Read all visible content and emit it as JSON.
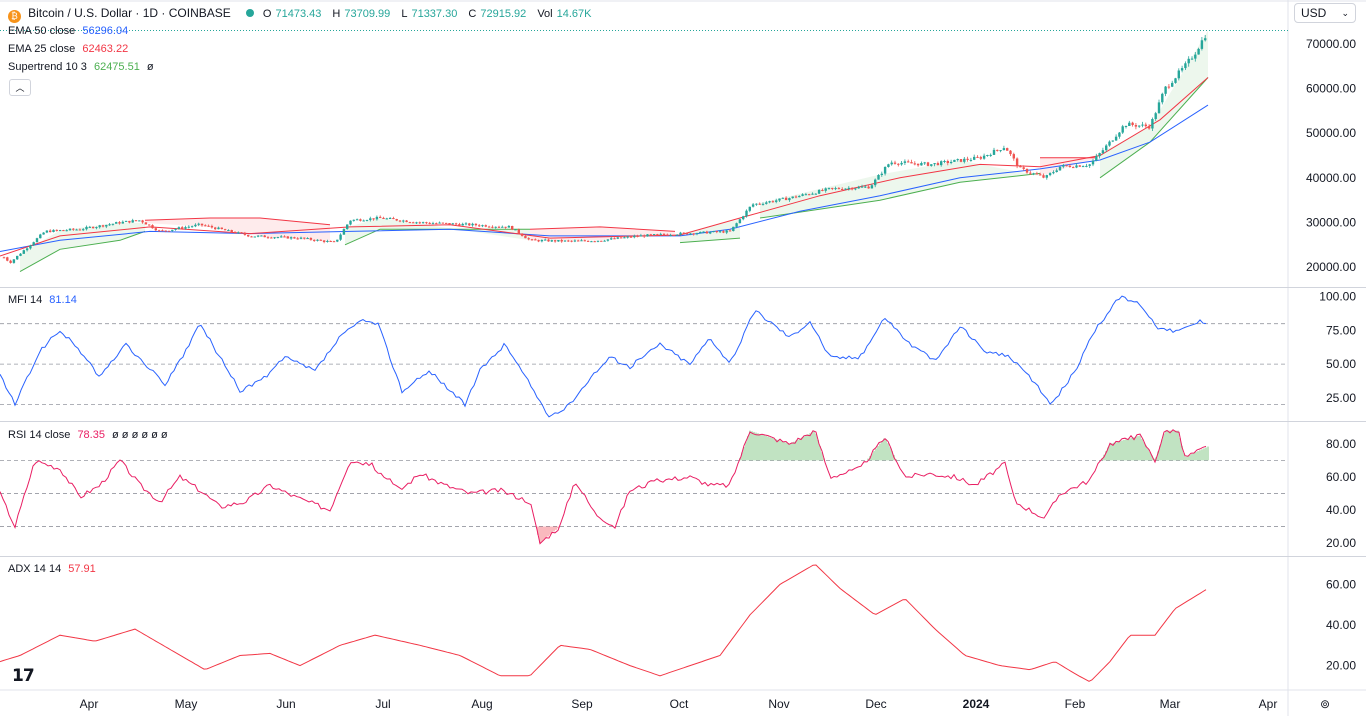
{
  "header": {
    "symbol_title": "Bitcoin / U.S. Dollar · 1D · COINBASE",
    "open_label": "O",
    "open": "71473.43",
    "high_label": "H",
    "high": "73709.99",
    "low_label": "L",
    "low": "71337.30",
    "close_label": "C",
    "close": "72915.92",
    "vol_label": "Vol",
    "vol": "14.67K",
    "currency": "USD"
  },
  "legends": {
    "ema50_name": "EMA 50 close",
    "ema50_value": "56296.04",
    "ema25_name": "EMA 25 close",
    "ema25_value": "62463.22",
    "supertrend_name": "Supertrend 10 3",
    "supertrend_value": "62475.51",
    "mfi_name": "MFI 14",
    "mfi_value": "81.14",
    "rsi_name": "RSI 14 close",
    "rsi_value": "78.35",
    "adx_name": "ADX 14 14",
    "adx_value": "57.91"
  },
  "colors": {
    "up": "#26a69a",
    "down": "#ef5350",
    "ema50": "#2962ff",
    "ema25": "#f23645",
    "supertrend_up": "#4caf50",
    "supertrend_down": "#f23645",
    "mfi": "#2962ff",
    "rsi": "#e91e63",
    "adx": "#f23645",
    "grid": "#e0e3eb"
  },
  "chart_data": [
    {
      "type": "candlestick",
      "title": "Bitcoin / U.S. Dollar · 1D · COINBASE",
      "x": [
        "Apr",
        "May",
        "Jun",
        "Jul",
        "Aug",
        "Sep",
        "Oct",
        "Nov",
        "Dec",
        "2024",
        "Feb",
        "Mar",
        "Apr"
      ],
      "ylim": [
        16000,
        74000
      ],
      "yticks": [
        "20000.00",
        "30000.00",
        "40000.00",
        "50000.00",
        "60000.00",
        "70000.00"
      ],
      "price_path": [
        [
          0,
          23000
        ],
        [
          10,
          21000
        ],
        [
          25,
          24000
        ],
        [
          45,
          28000
        ],
        [
          80,
          28500
        ],
        [
          120,
          30000
        ],
        [
          140,
          30500
        ],
        [
          160,
          28000
        ],
        [
          200,
          29500
        ],
        [
          250,
          27000
        ],
        [
          300,
          26500
        ],
        [
          335,
          25500
        ],
        [
          350,
          30500
        ],
        [
          380,
          31000
        ],
        [
          420,
          30000
        ],
        [
          470,
          29500
        ],
        [
          510,
          29000
        ],
        [
          530,
          26000
        ],
        [
          570,
          25800
        ],
        [
          600,
          26000
        ],
        [
          640,
          27000
        ],
        [
          680,
          27500
        ],
        [
          730,
          28000
        ],
        [
          752,
          34000
        ],
        [
          790,
          35500
        ],
        [
          830,
          37500
        ],
        [
          870,
          38000
        ],
        [
          890,
          43500
        ],
        [
          930,
          43000
        ],
        [
          980,
          44500
        ],
        [
          1005,
          47000
        ],
        [
          1020,
          42000
        ],
        [
          1045,
          40000
        ],
        [
          1060,
          42500
        ],
        [
          1090,
          43000
        ],
        [
          1110,
          48000
        ],
        [
          1125,
          52000
        ],
        [
          1150,
          51500
        ],
        [
          1165,
          60000
        ],
        [
          1185,
          65000
        ],
        [
          1195,
          68000
        ],
        [
          1208,
          73000
        ]
      ],
      "ema50_path": [
        [
          0,
          23500
        ],
        [
          60,
          26000
        ],
        [
          150,
          28000
        ],
        [
          250,
          27500
        ],
        [
          350,
          28000
        ],
        [
          450,
          28500
        ],
        [
          550,
          27000
        ],
        [
          680,
          27000
        ],
        [
          730,
          28500
        ],
        [
          800,
          32500
        ],
        [
          880,
          36000
        ],
        [
          960,
          40000
        ],
        [
          1040,
          42000
        ],
        [
          1100,
          44000
        ],
        [
          1150,
          48000
        ],
        [
          1208,
          56296.04
        ]
      ],
      "ema25_path": [
        [
          0,
          22500
        ],
        [
          60,
          27000
        ],
        [
          150,
          29000
        ],
        [
          250,
          27500
        ],
        [
          350,
          29000
        ],
        [
          450,
          29500
        ],
        [
          550,
          26500
        ],
        [
          680,
          27200
        ],
        [
          740,
          31000
        ],
        [
          820,
          36000
        ],
        [
          900,
          40000
        ],
        [
          980,
          43000
        ],
        [
          1040,
          42500
        ],
        [
          1100,
          45000
        ],
        [
          1160,
          53000
        ],
        [
          1208,
          62463.22
        ]
      ],
      "supertrend_up_segments": [
        [
          [
            20,
            19000
          ],
          [
            60,
            24000
          ],
          [
            120,
            26000
          ],
          [
            145,
            28000
          ]
        ],
        [
          [
            345,
            25000
          ],
          [
            380,
            28500
          ],
          [
            530,
            28500
          ]
        ],
        [
          [
            680,
            25500
          ],
          [
            740,
            26500
          ]
        ],
        [
          [
            760,
            31000
          ],
          [
            880,
            35000
          ],
          [
            960,
            39000
          ],
          [
            1040,
            41000
          ]
        ],
        [
          [
            1100,
            40000
          ],
          [
            1150,
            48000
          ],
          [
            1208,
            62475.51
          ]
        ]
      ],
      "supertrend_down_segments": [
        [
          [
            145,
            30500
          ],
          [
            210,
            31000
          ],
          [
            260,
            31000
          ],
          [
            330,
            29500
          ]
        ],
        [
          [
            530,
            28500
          ],
          [
            600,
            29000
          ],
          [
            675,
            28000
          ]
        ],
        [
          [
            1040,
            44500
          ],
          [
            1095,
            44500
          ]
        ]
      ]
    },
    {
      "type": "line",
      "name": "MFI 14",
      "ylim": [
        10,
        105
      ],
      "yticks": [
        "25.00",
        "50.00",
        "75.00",
        "100.00"
      ],
      "bands": [
        20,
        50,
        80
      ],
      "values": [
        [
          0,
          42
        ],
        [
          15,
          20
        ],
        [
          40,
          60
        ],
        [
          60,
          75
        ],
        [
          80,
          60
        ],
        [
          100,
          40
        ],
        [
          125,
          65
        ],
        [
          145,
          50
        ],
        [
          165,
          35
        ],
        [
          180,
          52
        ],
        [
          200,
          80
        ],
        [
          220,
          55
        ],
        [
          240,
          30
        ],
        [
          265,
          40
        ],
        [
          285,
          55
        ],
        [
          315,
          45
        ],
        [
          340,
          70
        ],
        [
          360,
          82
        ],
        [
          378,
          80
        ],
        [
          402,
          30
        ],
        [
          430,
          45
        ],
        [
          465,
          20
        ],
        [
          480,
          45
        ],
        [
          505,
          65
        ],
        [
          530,
          35
        ],
        [
          550,
          10
        ],
        [
          570,
          20
        ],
        [
          590,
          40
        ],
        [
          610,
          55
        ],
        [
          630,
          48
        ],
        [
          660,
          65
        ],
        [
          690,
          50
        ],
        [
          710,
          70
        ],
        [
          730,
          50
        ],
        [
          755,
          90
        ],
        [
          790,
          70
        ],
        [
          810,
          82
        ],
        [
          830,
          55
        ],
        [
          860,
          55
        ],
        [
          885,
          85
        ],
        [
          910,
          65
        ],
        [
          935,
          52
        ],
        [
          960,
          78
        ],
        [
          985,
          60
        ],
        [
          1010,
          55
        ],
        [
          1030,
          40
        ],
        [
          1052,
          20
        ],
        [
          1075,
          45
        ],
        [
          1095,
          75
        ],
        [
          1120,
          100
        ],
        [
          1140,
          95
        ],
        [
          1160,
          75
        ],
        [
          1180,
          75
        ],
        [
          1200,
          82
        ],
        [
          1208,
          81.14
        ]
      ]
    },
    {
      "type": "area",
      "name": "RSI 14 close",
      "ylim": [
        14,
        92
      ],
      "yticks": [
        "20.00",
        "40.00",
        "60.00",
        "80.00"
      ],
      "bands": [
        30,
        50,
        70
      ],
      "values": [
        [
          0,
          50
        ],
        [
          15,
          30
        ],
        [
          35,
          70
        ],
        [
          60,
          65
        ],
        [
          80,
          48
        ],
        [
          100,
          55
        ],
        [
          120,
          70
        ],
        [
          140,
          55
        ],
        [
          160,
          45
        ],
        [
          180,
          60
        ],
        [
          200,
          52
        ],
        [
          220,
          42
        ],
        [
          245,
          45
        ],
        [
          270,
          55
        ],
        [
          295,
          48
        ],
        [
          330,
          40
        ],
        [
          350,
          70
        ],
        [
          370,
          68
        ],
        [
          400,
          52
        ],
        [
          420,
          62
        ],
        [
          445,
          55
        ],
        [
          470,
          50
        ],
        [
          500,
          52
        ],
        [
          530,
          45
        ],
        [
          540,
          20
        ],
        [
          560,
          30
        ],
        [
          575,
          58
        ],
        [
          595,
          38
        ],
        [
          615,
          30
        ],
        [
          630,
          52
        ],
        [
          660,
          58
        ],
        [
          690,
          60
        ],
        [
          710,
          55
        ],
        [
          730,
          55
        ],
        [
          750,
          88
        ],
        [
          790,
          80
        ],
        [
          815,
          88
        ],
        [
          830,
          60
        ],
        [
          860,
          65
        ],
        [
          885,
          84
        ],
        [
          905,
          60
        ],
        [
          930,
          62
        ],
        [
          955,
          60
        ],
        [
          975,
          55
        ],
        [
          1005,
          68
        ],
        [
          1015,
          45
        ],
        [
          1045,
          35
        ],
        [
          1060,
          50
        ],
        [
          1090,
          58
        ],
        [
          1110,
          80
        ],
        [
          1140,
          85
        ],
        [
          1155,
          70
        ],
        [
          1165,
          88
        ],
        [
          1178,
          88
        ],
        [
          1185,
          72
        ],
        [
          1208,
          78.35
        ]
      ]
    },
    {
      "type": "line",
      "name": "ADX 14 14",
      "ylim": [
        8,
        72
      ],
      "yticks": [
        "20.00",
        "40.00",
        "60.00"
      ],
      "values": [
        [
          0,
          22
        ],
        [
          20,
          25
        ],
        [
          60,
          35
        ],
        [
          95,
          32
        ],
        [
          135,
          38
        ],
        [
          170,
          28
        ],
        [
          205,
          18
        ],
        [
          240,
          25
        ],
        [
          270,
          26
        ],
        [
          300,
          20
        ],
        [
          340,
          30
        ],
        [
          375,
          35
        ],
        [
          420,
          30
        ],
        [
          460,
          25
        ],
        [
          500,
          15
        ],
        [
          530,
          15
        ],
        [
          560,
          30
        ],
        [
          590,
          28
        ],
        [
          630,
          20
        ],
        [
          660,
          15
        ],
        [
          690,
          20
        ],
        [
          720,
          25
        ],
        [
          750,
          45
        ],
        [
          780,
          60
        ],
        [
          815,
          70
        ],
        [
          840,
          58
        ],
        [
          875,
          45
        ],
        [
          905,
          53
        ],
        [
          935,
          38
        ],
        [
          965,
          25
        ],
        [
          1000,
          20
        ],
        [
          1030,
          18
        ],
        [
          1055,
          22
        ],
        [
          1075,
          16
        ],
        [
          1090,
          12
        ],
        [
          1110,
          22
        ],
        [
          1130,
          35
        ],
        [
          1155,
          35
        ],
        [
          1175,
          48
        ],
        [
          1208,
          58
        ]
      ]
    }
  ]
}
